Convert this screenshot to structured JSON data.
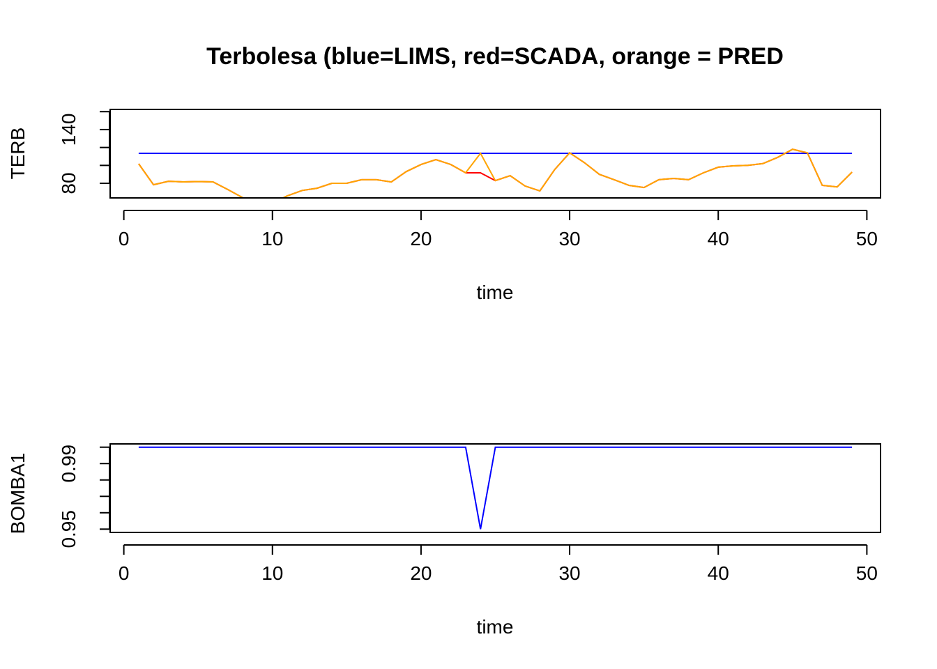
{
  "title": "Terbolesa (blue=LIMS, red=SCADA, orange = PRED",
  "colors": {
    "lims": "#0000ff",
    "scada": "#ff0000",
    "pred": "#ffa500",
    "axis": "#000000"
  },
  "chart_data": [
    {
      "type": "line",
      "title": "Terbolesa (blue=LIMS, red=SCADA, orange = PRED",
      "xlabel": "time",
      "ylabel": "TERB",
      "xlim": [
        -0.92,
        50.92
      ],
      "ylim": [
        63.7,
        162.5
      ],
      "xticks": [
        0,
        10,
        20,
        30,
        40,
        50
      ],
      "yticks": [
        80,
        100,
        120,
        140,
        160
      ],
      "ytick_labels": [
        "80",
        "",
        "",
        "140",
        ""
      ],
      "x": [
        1,
        2,
        3,
        4,
        5,
        6,
        7,
        8,
        9,
        10,
        11,
        12,
        13,
        14,
        15,
        16,
        17,
        18,
        19,
        20,
        21,
        22,
        23,
        24,
        25,
        26,
        27,
        28,
        29,
        30,
        31,
        32,
        33,
        34,
        35,
        36,
        37,
        38,
        39,
        40,
        41,
        42,
        43,
        44,
        45,
        46,
        47,
        48,
        49
      ],
      "series": [
        {
          "name": "LIMS",
          "color": "#0000ff",
          "values": [
            113.5,
            113.5,
            113.5,
            113.5,
            113.5,
            113.5,
            113.5,
            113.5,
            113.5,
            113.5,
            113.5,
            113.5,
            113.5,
            113.5,
            113.5,
            113.5,
            113.5,
            113.5,
            113.5,
            113.5,
            113.5,
            113.5,
            113.5,
            113.5,
            113.5,
            113.5,
            113.5,
            113.5,
            113.5,
            113.5,
            113.5,
            113.5,
            113.5,
            113.5,
            113.5,
            113.5,
            113.5,
            113.5,
            113.5,
            113.5,
            113.5,
            113.5,
            113.5,
            113.5,
            113.5,
            113.5,
            113.5,
            113.5,
            113.5
          ]
        },
        {
          "name": "SCADA",
          "color": "#ff0000",
          "values": [
            101.8,
            78.4,
            82.3,
            81.6,
            82,
            81.6,
            73,
            64,
            55,
            58,
            66,
            72,
            74.5,
            80,
            80,
            84,
            84,
            81.5,
            93,
            101,
            106.5,
            101,
            91.7,
            91.7,
            83,
            88.5,
            77,
            71.5,
            95.5,
            114,
            103,
            90,
            84,
            77.7,
            75.3,
            84,
            85.5,
            84,
            91.7,
            98,
            99.5,
            100,
            102,
            109,
            118,
            114,
            77.7,
            76,
            92.5
          ]
        },
        {
          "name": "PRED",
          "color": "#ffa500",
          "values": [
            101.8,
            78.4,
            82.3,
            81.6,
            82,
            81.6,
            73,
            64,
            55,
            58,
            66,
            72,
            74.5,
            80,
            80,
            84,
            84,
            81.5,
            93,
            101,
            106.5,
            101,
            91.7,
            113.5,
            83,
            88.5,
            77,
            71.5,
            95.5,
            114,
            103,
            90,
            84,
            77.7,
            75.3,
            84,
            85.5,
            84,
            91.7,
            98,
            99.5,
            100,
            102,
            109,
            118,
            114,
            77.7,
            76,
            92.5
          ]
        }
      ]
    },
    {
      "type": "line",
      "xlabel": "time",
      "ylabel": "BOMBA1",
      "xlim": [
        -0.92,
        50.92
      ],
      "ylim": [
        0.948,
        1.002
      ],
      "xticks": [
        0,
        10,
        20,
        30,
        40,
        50
      ],
      "yticks": [
        0.95,
        0.96,
        0.97,
        0.98,
        0.99,
        1.0
      ],
      "ytick_labels": [
        "0.95",
        "",
        "",
        "",
        "0.99",
        ""
      ],
      "x": [
        1,
        2,
        3,
        4,
        5,
        6,
        7,
        8,
        9,
        10,
        11,
        12,
        13,
        14,
        15,
        16,
        17,
        18,
        19,
        20,
        21,
        22,
        23,
        24,
        25,
        26,
        27,
        28,
        29,
        30,
        31,
        32,
        33,
        34,
        35,
        36,
        37,
        38,
        39,
        40,
        41,
        42,
        43,
        44,
        45,
        46,
        47,
        48,
        49
      ],
      "series": [
        {
          "name": "BOMBA1",
          "color": "#0000ff",
          "values": [
            1,
            1,
            1,
            1,
            1,
            1,
            1,
            1,
            1,
            1,
            1,
            1,
            1,
            1,
            1,
            1,
            1,
            1,
            1,
            1,
            1,
            1,
            1,
            0.95,
            1,
            1,
            1,
            1,
            1,
            1,
            1,
            1,
            1,
            1,
            1,
            1,
            1,
            1,
            1,
            1,
            1,
            1,
            1,
            1,
            1,
            1,
            1,
            1,
            1
          ]
        }
      ]
    }
  ]
}
